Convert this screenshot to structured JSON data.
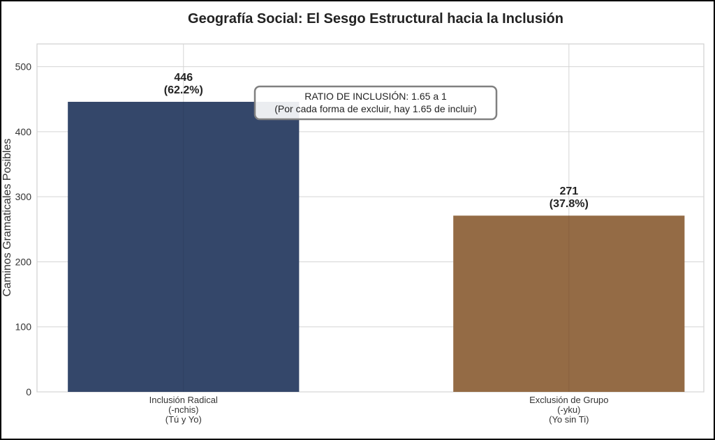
{
  "chart_data": {
    "type": "bar",
    "title": "Geografía Social: El Sesgo Estructural hacia la Inclusión",
    "xlabel": "",
    "ylabel": "Caminos Gramaticales Posibles",
    "categories": [
      [
        "Inclusión Radical",
        "(-nchis)",
        "(Tú y Yo)"
      ],
      [
        "Exclusión de Grupo",
        "(-yku)",
        "(Yo sin Ti)"
      ]
    ],
    "values": [
      446,
      271
    ],
    "data_labels": [
      [
        "446",
        "(62.2%)"
      ],
      [
        "271",
        "(37.8%)"
      ]
    ],
    "colors": [
      "#34476a",
      "#946b45"
    ],
    "ylim": [
      0,
      535
    ],
    "yticks": [
      0,
      100,
      200,
      300,
      400,
      500
    ],
    "grid": true,
    "annotation": [
      "RATIO DE INCLUSIÓN: 1.65 a 1",
      "(Por cada forma de excluir, hay 1.65 de incluir)"
    ]
  }
}
